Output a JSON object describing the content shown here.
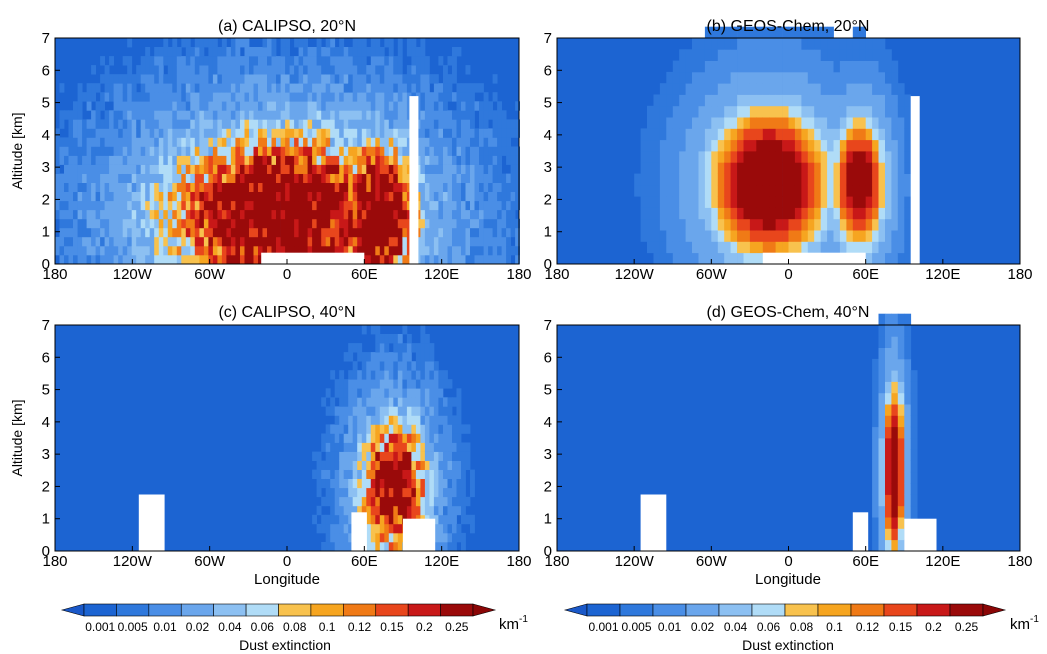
{
  "colorbar": {
    "labels": [
      "0.001",
      "0.005",
      "0.01",
      "0.02",
      "0.04",
      "0.06",
      "0.08",
      "0.1",
      "0.12",
      "0.15",
      "0.2",
      "0.25"
    ],
    "unit_base": "km",
    "unit_exp": "-1",
    "title": "Dust extinction",
    "colors": [
      "#1c64d2",
      "#2f78dc",
      "#4a8ee6",
      "#6aa6ec",
      "#8cc0f2",
      "#b0dcf7",
      "#f8c24e",
      "#f6a520",
      "#f07a16",
      "#e8461c",
      "#c81818",
      "#9a0a0a"
    ],
    "below_color": "#1a58c8",
    "above_color": "#8a0606"
  },
  "chart_data": [
    {
      "type": "heatmap",
      "title": "(a) CALIPSO, 20°N",
      "xlabel": "",
      "ylabel": "Altitude [km]",
      "xlim": [
        -180,
        180
      ],
      "ylim": [
        0,
        7
      ],
      "xticks": [
        "180",
        "120W",
        "60W",
        "0",
        "60E",
        "120E",
        "180"
      ],
      "yticks": [
        "0",
        "1",
        "2",
        "3",
        "4",
        "5",
        "6",
        "7"
      ],
      "value_unit": "km-1",
      "dust_plumes": [
        {
          "lon_range": [
            -80,
            60
          ],
          "center_lon": -5,
          "peak_altitude_km": 1.5,
          "top_altitude_km": 4.8,
          "max_extinction": 0.25
        },
        {
          "lon_range": [
            40,
            90
          ],
          "center_lon": 70,
          "peak_altitude_km": 1.5,
          "top_altitude_km": 4.3,
          "max_extinction": 0.25
        }
      ]
    },
    {
      "type": "heatmap",
      "title": "(b) GEOS-Chem, 20°N",
      "xlabel": "",
      "ylabel": "",
      "xlim": [
        -180,
        180
      ],
      "ylim": [
        0,
        7
      ],
      "xticks": [
        "180",
        "120W",
        "60W",
        "0",
        "60E",
        "120E",
        "180"
      ],
      "yticks": [
        "0",
        "1",
        "2",
        "3",
        "4",
        "5",
        "6",
        "7"
      ],
      "value_unit": "km-1",
      "dust_plumes": [
        {
          "lon_range": [
            -60,
            20
          ],
          "center_lon": -15,
          "peak_altitude_km": 2.5,
          "top_altitude_km": 4.3,
          "max_extinction": 0.25
        },
        {
          "lon_range": [
            40,
            75
          ],
          "center_lon": 55,
          "peak_altitude_km": 2.5,
          "top_altitude_km": 3.8,
          "max_extinction": 0.2
        }
      ]
    },
    {
      "type": "heatmap",
      "title": "(c) CALIPSO, 40°N",
      "xlabel": "Longitude",
      "ylabel": "Altitude [km]",
      "xlim": [
        -180,
        180
      ],
      "ylim": [
        0,
        7
      ],
      "xticks": [
        "180",
        "120W",
        "60W",
        "0",
        "60E",
        "120E",
        "180"
      ],
      "yticks": [
        "0",
        "1",
        "2",
        "3",
        "4",
        "5",
        "6",
        "7"
      ],
      "value_unit": "km-1",
      "dust_plumes": [
        {
          "lon_range": [
            60,
            100
          ],
          "center_lon": 83,
          "peak_altitude_km": 2.0,
          "top_altitude_km": 4.0,
          "max_extinction": 0.2
        }
      ]
    },
    {
      "type": "heatmap",
      "title": "(d) GEOS-Chem, 40°N",
      "xlabel": "Longitude",
      "ylabel": "",
      "xlim": [
        -180,
        180
      ],
      "ylim": [
        0,
        7
      ],
      "xticks": [
        "180",
        "120W",
        "60W",
        "0",
        "60E",
        "120E",
        "180"
      ],
      "yticks": [
        "0",
        "1",
        "2",
        "3",
        "4",
        "5",
        "6",
        "7"
      ],
      "value_unit": "km-1",
      "dust_plumes": [
        {
          "lon_range": [
            76,
            90
          ],
          "center_lon": 82,
          "peak_altitude_km": 2.5,
          "top_altitude_km": 4.8,
          "max_extinction": 0.25
        }
      ]
    }
  ]
}
